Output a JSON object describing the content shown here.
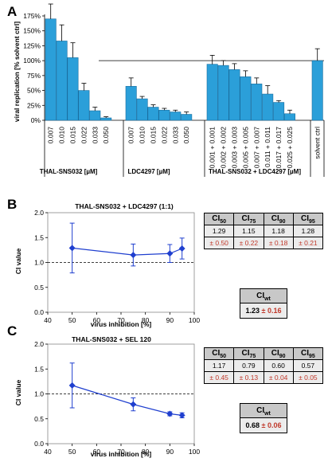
{
  "panels": [
    "A",
    "B",
    "C"
  ],
  "panel_a": {
    "ylabel": "viral replication [% solvent ctrl]",
    "yticks": [
      "0%",
      "25%",
      "50%",
      "75%",
      "100%",
      "125%",
      "150%",
      "175%"
    ],
    "group_labels": [
      "THAL-SNS032 [µM]",
      "LDC4297 [µM]",
      "THAL-SNS032 + LDC4297 [µM]"
    ]
  },
  "panel_b": {
    "title": "THAL-SNS032 + LDC4297 (1:1)",
    "ylabel": "CI value",
    "xlabel": "virus inhibition [%]",
    "yticks": [
      "0.0",
      "0.5",
      "1.0",
      "1.5",
      "2.0"
    ],
    "xticks": [
      "40",
      "50",
      "60",
      "70",
      "80",
      "90",
      "100"
    ],
    "table": {
      "values": [
        "1.29",
        "1.15",
        "1.18",
        "1.28"
      ],
      "sds": [
        "± 0.50",
        "± 0.22",
        "± 0.18",
        "± 0.21"
      ]
    },
    "wt": {
      "value": "1.23",
      "sd": "± 0.16"
    }
  },
  "panel_c": {
    "title": "THAL-SNS032 + SEL 120",
    "ylabel": "CI value",
    "xlabel": "virus inhibition [%]",
    "yticks": [
      "0.0",
      "0.5",
      "1.0",
      "1.5",
      "2.0"
    ],
    "xticks": [
      "40",
      "50",
      "60",
      "70",
      "80",
      "90",
      "100"
    ],
    "table": {
      "values": [
        "1.17",
        "0.79",
        "0.60",
        "0.57"
      ],
      "sds": [
        "± 0.45",
        "± 0.13",
        "± 0.04",
        "± 0.05"
      ]
    },
    "wt": {
      "value": "0.68",
      "sd": "± 0.06"
    }
  },
  "ci_headers": [
    "CI50",
    "CI75",
    "CI90",
    "CI95"
  ],
  "ci_header_parts": [
    {
      "base": "CI",
      "sub": "50"
    },
    {
      "base": "CI",
      "sub": "75"
    },
    {
      "base": "CI",
      "sub": "90"
    },
    {
      "base": "CI",
      "sub": "95"
    }
  ],
  "wt_header": {
    "base": "CI",
    "sub": "wt"
  },
  "colors": {
    "bar": "#2b9fd9",
    "line": "#1f3fcf",
    "sd_text": "#c0392b",
    "table_head": "#c8c8c8",
    "table_cell": "#ececec"
  },
  "chart_data": [
    {
      "type": "bar",
      "ylabel": "viral replication [% solvent ctrl]",
      "ylim": [
        0,
        175
      ],
      "categories": [
        "0.007",
        "0.010",
        "0.015",
        "0.022",
        "0.033",
        "0.050",
        "0.007",
        "0.010",
        "0.015",
        "0.022",
        "0.033",
        "0.050",
        "0.001 + 0.001",
        "0.002 + 0.002",
        "0.003 + 0.003",
        "0.005 + 0.005",
        "0.007 + 0.007",
        "0.011 + 0.011",
        "0.017 + 0.017",
        "0.025 + 0.025",
        "solvent ctrl"
      ],
      "groups": [
        {
          "label": "THAL-SNS032 [µM]",
          "indices": [
            0,
            1,
            2,
            3,
            4,
            5
          ]
        },
        {
          "label": "LDC4297 [µM]",
          "indices": [
            6,
            7,
            8,
            9,
            10,
            11
          ]
        },
        {
          "label": "THAL-SNS032 + LDC4297 [µM]",
          "indices": [
            12,
            13,
            14,
            15,
            16,
            17,
            18,
            19
          ]
        }
      ],
      "values": [
        170,
        133,
        105,
        50,
        16,
        4,
        57,
        36,
        22,
        17,
        14,
        10,
        94,
        92,
        85,
        73,
        61,
        44,
        30,
        11,
        100
      ],
      "errors": [
        25,
        27,
        25,
        12,
        6,
        2,
        14,
        4,
        4,
        3,
        3,
        4,
        15,
        8,
        10,
        10,
        10,
        14,
        3,
        6,
        20
      ],
      "reference_line": 100
    },
    {
      "type": "line",
      "title": "THAL-SNS032 + LDC4297 (1:1)",
      "xlabel": "virus inhibition [%]",
      "ylabel": "CI value",
      "xlim": [
        40,
        100
      ],
      "ylim": [
        0,
        2
      ],
      "x": [
        50,
        75,
        90,
        95
      ],
      "y": [
        1.29,
        1.15,
        1.18,
        1.28
      ],
      "errors": [
        0.5,
        0.22,
        0.18,
        0.21
      ],
      "reference_line": 1.0
    },
    {
      "type": "line",
      "title": "THAL-SNS032 + SEL 120",
      "xlabel": "virus inhibition [%]",
      "ylabel": "CI value",
      "xlim": [
        40,
        100
      ],
      "ylim": [
        0,
        2
      ],
      "x": [
        50,
        75,
        90,
        95
      ],
      "y": [
        1.17,
        0.79,
        0.6,
        0.57
      ],
      "errors": [
        0.45,
        0.13,
        0.04,
        0.05
      ],
      "reference_line": 1.0
    }
  ]
}
